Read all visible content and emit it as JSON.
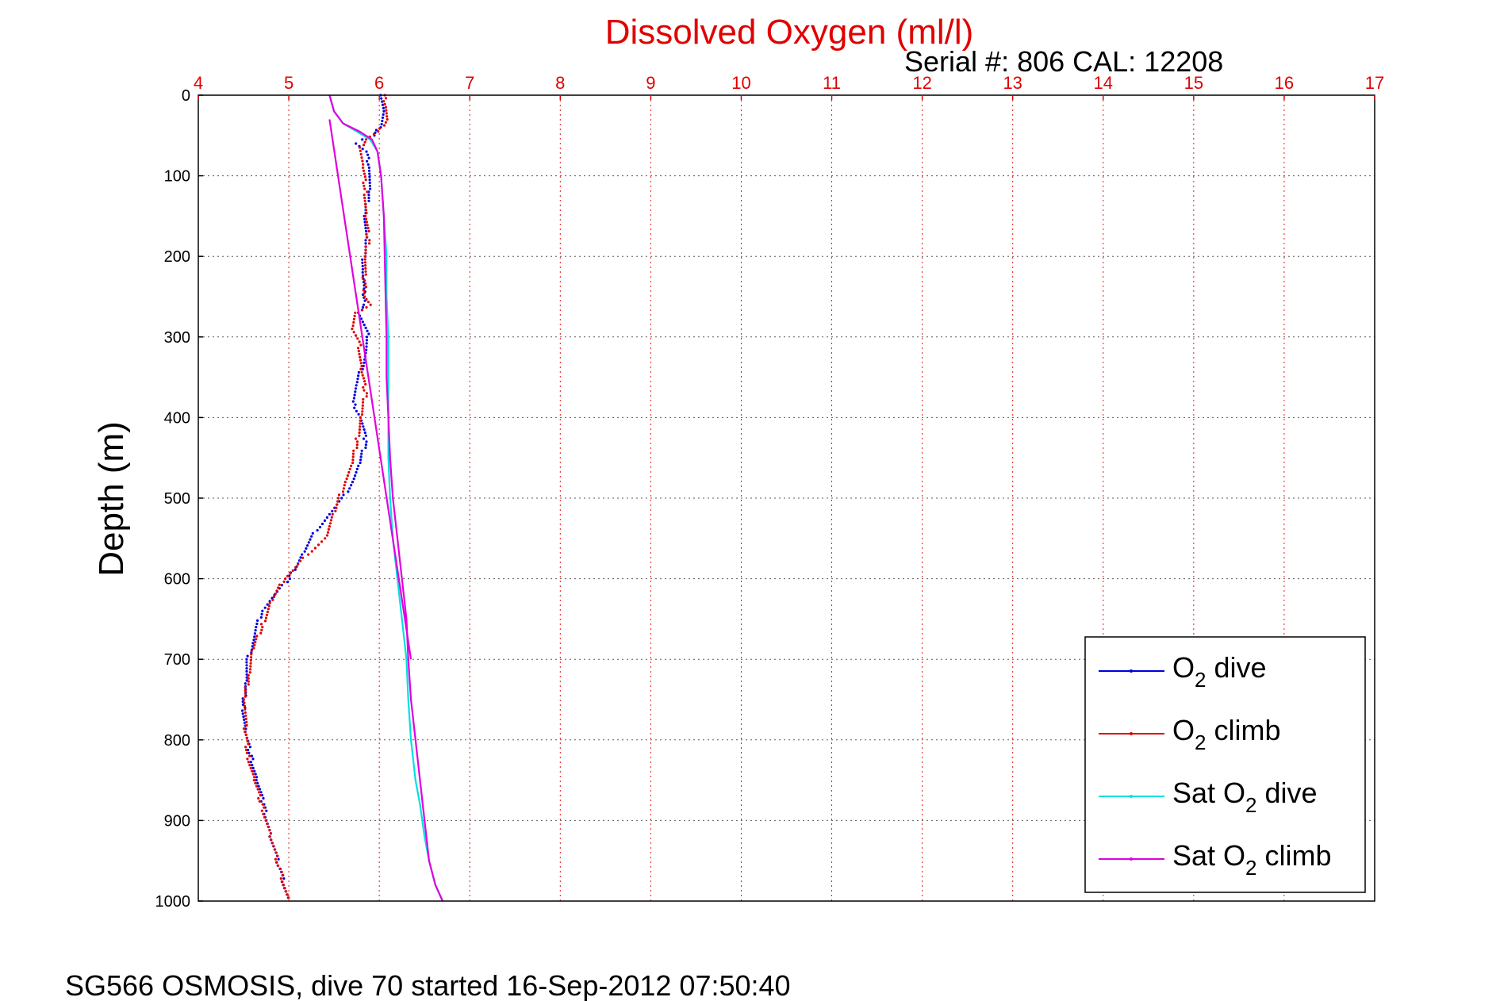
{
  "chart_data": {
    "type": "line",
    "title": "Dissolved Oxygen (ml/l)",
    "serial_text": "Serial #: 806  CAL: 12208",
    "ylabel": "Depth (m)",
    "footer": "SG566 OSMOSIS, dive 70 started 16-Sep-2012 07:50:40",
    "xlim": [
      4,
      17
    ],
    "ylim": [
      0,
      1000
    ],
    "y_reversed": true,
    "x_axis_position": "top",
    "x_ticks": [
      "4",
      "5",
      "6",
      "7",
      "8",
      "9",
      "10",
      "11",
      "12",
      "13",
      "14",
      "15",
      "16",
      "17"
    ],
    "y_ticks": [
      "0",
      "100",
      "200",
      "300",
      "400",
      "500",
      "600",
      "700",
      "800",
      "900",
      "1000"
    ],
    "grid": true,
    "legend_position": "bottom-right",
    "colors": {
      "axis_title": "#e00000",
      "x_ticks": "#e00000"
    },
    "legend": [
      {
        "main": "O",
        "sub": "2",
        "rest": " dive"
      },
      {
        "main": "O",
        "sub": "2",
        "rest": " climb"
      },
      {
        "main": "Sat O",
        "sub": "2",
        "rest": " dive"
      },
      {
        "main": "Sat O",
        "sub": "2",
        "rest": " climb"
      }
    ],
    "series": [
      {
        "name": "O2 dive",
        "color": "#0000e0",
        "style": "dots",
        "x": [
          6.03,
          6.05,
          6.0,
          5.95,
          5.8,
          5.75,
          5.85,
          5.9,
          5.88,
          5.85,
          5.85,
          5.83,
          5.82,
          5.82,
          5.85,
          5.82,
          5.78,
          5.83,
          5.88,
          5.85,
          5.8,
          5.75,
          5.7,
          5.8,
          5.85,
          5.78,
          5.7,
          5.6,
          5.45,
          5.3,
          5.15,
          5.0,
          4.85,
          4.7,
          4.65,
          4.6,
          4.55,
          4.52,
          4.5,
          4.52,
          4.58,
          4.65,
          4.72,
          4.8,
          4.9,
          5.0
        ],
        "y": [
          0,
          20,
          40,
          50,
          55,
          60,
          70,
          90,
          120,
          150,
          180,
          200,
          220,
          240,
          255,
          260,
          270,
          285,
          300,
          320,
          340,
          360,
          380,
          400,
          430,
          460,
          480,
          500,
          520,
          540,
          570,
          600,
          620,
          640,
          660,
          680,
          700,
          730,
          760,
          790,
          820,
          850,
          880,
          920,
          960,
          1000
        ]
      },
      {
        "name": "O2 climb",
        "color": "#e00000",
        "style": "dots",
        "x": [
          6.05,
          6.08,
          6.08,
          6.0,
          5.85,
          5.8,
          5.82,
          5.85,
          5.85,
          5.88,
          5.85,
          5.83,
          5.85,
          5.9,
          5.75,
          5.7,
          5.78,
          5.8,
          5.85,
          5.8,
          5.75,
          5.7,
          5.62,
          5.5,
          5.4,
          5.2,
          5.05,
          4.95,
          4.8,
          4.7,
          4.6,
          4.55,
          4.52,
          4.52,
          4.55,
          4.62,
          4.7,
          4.8,
          4.9,
          5.0
        ],
        "y": [
          0,
          15,
          30,
          45,
          55,
          65,
          90,
          120,
          150,
          180,
          200,
          230,
          250,
          260,
          270,
          290,
          310,
          340,
          370,
          400,
          430,
          460,
          480,
          520,
          550,
          570,
          590,
          600,
          630,
          660,
          690,
          720,
          750,
          790,
          820,
          850,
          880,
          920,
          960,
          1000
        ]
      },
      {
        "name": "Sat O2 dive",
        "color": "#00e0e0",
        "style": "line",
        "x": [
          5.45,
          5.5,
          5.6,
          5.75,
          5.9,
          5.98,
          6.02,
          6.05,
          6.08,
          6.08,
          6.1,
          6.1,
          6.1,
          6.1,
          6.12,
          6.15,
          6.2,
          6.25,
          6.3,
          6.32,
          6.35,
          6.4,
          6.45,
          6.5,
          6.55,
          6.62,
          6.7
        ],
        "y": [
          0,
          20,
          35,
          45,
          55,
          70,
          100,
          150,
          200,
          250,
          300,
          350,
          400,
          450,
          500,
          550,
          600,
          650,
          700,
          750,
          800,
          850,
          880,
          920,
          950,
          980,
          1000
        ]
      },
      {
        "name": "Sat O2 climb",
        "color": "#e000e0",
        "style": "line",
        "x": [
          5.45,
          5.5,
          5.6,
          5.78,
          5.92,
          5.98,
          6.02,
          6.05,
          6.06,
          6.07,
          6.08,
          6.08,
          6.1,
          6.12,
          6.15,
          6.2,
          6.25,
          6.3,
          6.32,
          6.35,
          6.4,
          6.45,
          6.5,
          6.55,
          6.62,
          6.7
        ],
        "y": [
          0,
          20,
          35,
          45,
          55,
          70,
          100,
          150,
          200,
          250,
          300,
          350,
          400,
          450,
          500,
          550,
          600,
          650,
          700,
          750,
          800,
          850,
          900,
          950,
          980,
          1000
        ]
      },
      {
        "name": "Sat O2 climb segment",
        "color": "#e000e0",
        "style": "line",
        "x": [
          5.45,
          6.35
        ],
        "y": [
          30,
          700
        ]
      }
    ]
  }
}
